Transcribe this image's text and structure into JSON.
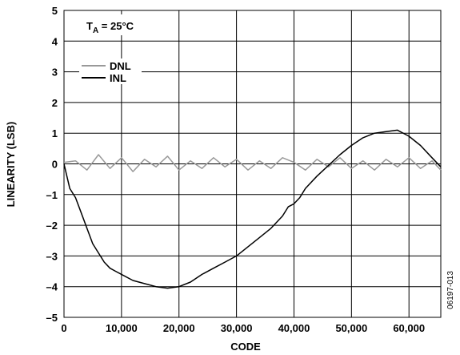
{
  "chart_data": {
    "type": "line",
    "title": "",
    "xlabel": "CODE",
    "ylabel": "LINEARITY (LSB)",
    "xlim": [
      0,
      65536
    ],
    "ylim": [
      -5,
      5
    ],
    "x_ticks": [
      0,
      10000,
      20000,
      30000,
      40000,
      50000,
      60000
    ],
    "x_tick_labels": [
      "0",
      "10,000",
      "20,000",
      "30,000",
      "40,000",
      "50,000",
      "60,000"
    ],
    "y_ticks": [
      5,
      4,
      3,
      2,
      1,
      0,
      -1,
      -2,
      -3,
      -4,
      -5
    ],
    "y_tick_labels": [
      "5",
      "4",
      "3",
      "2",
      "1",
      "0",
      "–1",
      "–2",
      "–3",
      "–4",
      "–5"
    ],
    "grid": true,
    "legend_position": "top-left",
    "annotation": {
      "text": "T",
      "sub": "A",
      "rest": " = 25°C"
    },
    "figure_id": "06197-013",
    "series": [
      {
        "name": "DNL",
        "color": "#999999",
        "x": [
          0,
          2000,
          4000,
          6000,
          8000,
          10000,
          12000,
          14000,
          16000,
          18000,
          20000,
          22000,
          24000,
          26000,
          28000,
          30000,
          32000,
          34000,
          36000,
          38000,
          40000,
          42000,
          44000,
          46000,
          48000,
          50000,
          52000,
          54000,
          56000,
          58000,
          60000,
          62000,
          64000,
          65535
        ],
        "y": [
          0.05,
          0.1,
          -0.2,
          0.3,
          -0.15,
          0.2,
          -0.25,
          0.15,
          -0.1,
          0.25,
          -0.2,
          0.1,
          -0.15,
          0.2,
          -0.1,
          0.15,
          -0.2,
          0.1,
          -0.15,
          0.2,
          0.05,
          -0.2,
          0.15,
          -0.1,
          0.2,
          -0.15,
          0.1,
          -0.2,
          0.15,
          -0.1,
          0.2,
          -0.15,
          0.1,
          -0.2
        ]
      },
      {
        "name": "INL",
        "color": "#000000",
        "x": [
          0,
          500,
          1000,
          2000,
          3000,
          4000,
          5000,
          6000,
          7000,
          8000,
          9000,
          10000,
          12000,
          14000,
          16000,
          18000,
          20000,
          22000,
          24000,
          26000,
          28000,
          30000,
          32000,
          34000,
          36000,
          38000,
          39000,
          40000,
          41000,
          42000,
          44000,
          46000,
          48000,
          50000,
          52000,
          54000,
          56000,
          58000,
          60000,
          62000,
          64000,
          65535
        ],
        "y": [
          0.0,
          -0.4,
          -0.8,
          -1.1,
          -1.6,
          -2.1,
          -2.6,
          -2.9,
          -3.2,
          -3.4,
          -3.5,
          -3.6,
          -3.8,
          -3.9,
          -4.0,
          -4.05,
          -4.0,
          -3.85,
          -3.6,
          -3.4,
          -3.2,
          -3.0,
          -2.7,
          -2.4,
          -2.1,
          -1.7,
          -1.4,
          -1.3,
          -1.1,
          -0.8,
          -0.4,
          -0.05,
          0.3,
          0.6,
          0.85,
          1.0,
          1.05,
          1.1,
          0.9,
          0.6,
          0.2,
          -0.1
        ]
      }
    ]
  }
}
